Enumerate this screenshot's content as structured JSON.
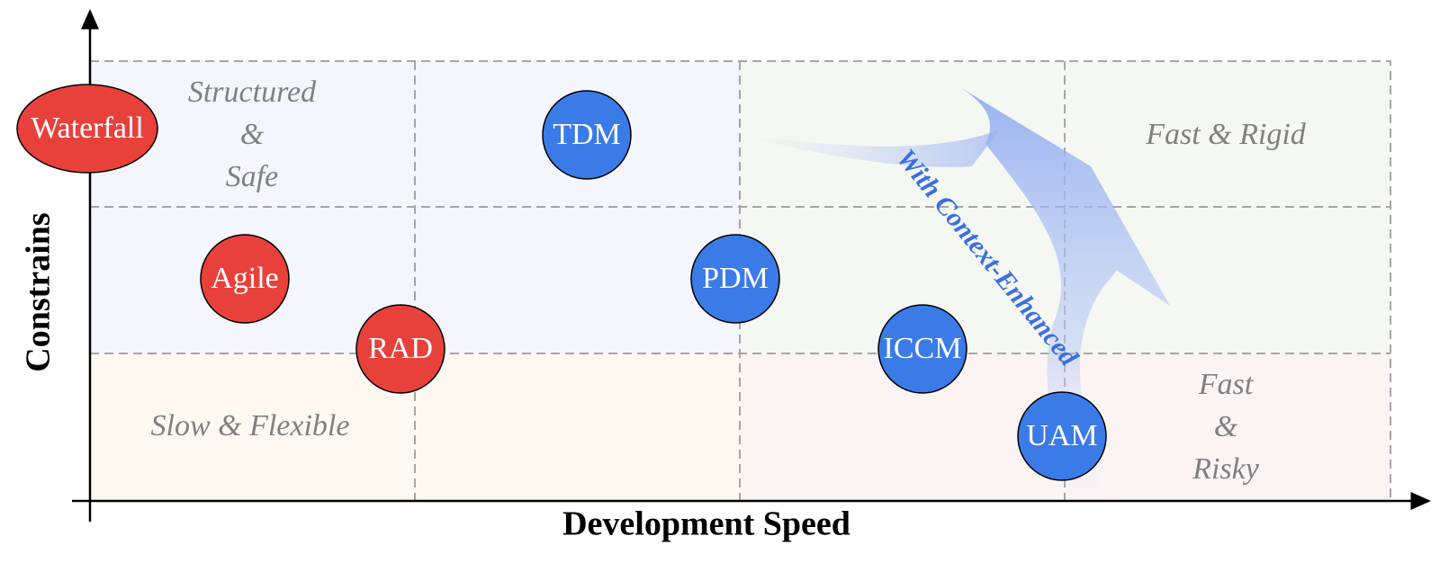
{
  "axes": {
    "x_label": "Development Speed",
    "y_label": "Constrains"
  },
  "quadrants": [
    {
      "lines": [
        "Structured",
        "&",
        "Safe"
      ]
    },
    {
      "lines": [
        "Fast & Rigid"
      ]
    },
    {
      "lines": [
        "Slow & Flexible"
      ]
    },
    {
      "lines": [
        "Fast",
        "&",
        "Risky"
      ]
    }
  ],
  "nodes": [
    {
      "label": "Waterfall"
    },
    {
      "label": "Agile"
    },
    {
      "label": "RAD"
    },
    {
      "label": "TDM"
    },
    {
      "label": "PDM"
    },
    {
      "label": "ICCM"
    },
    {
      "label": "UAM"
    }
  ],
  "arrow_label": "With Context-Enhanced"
}
